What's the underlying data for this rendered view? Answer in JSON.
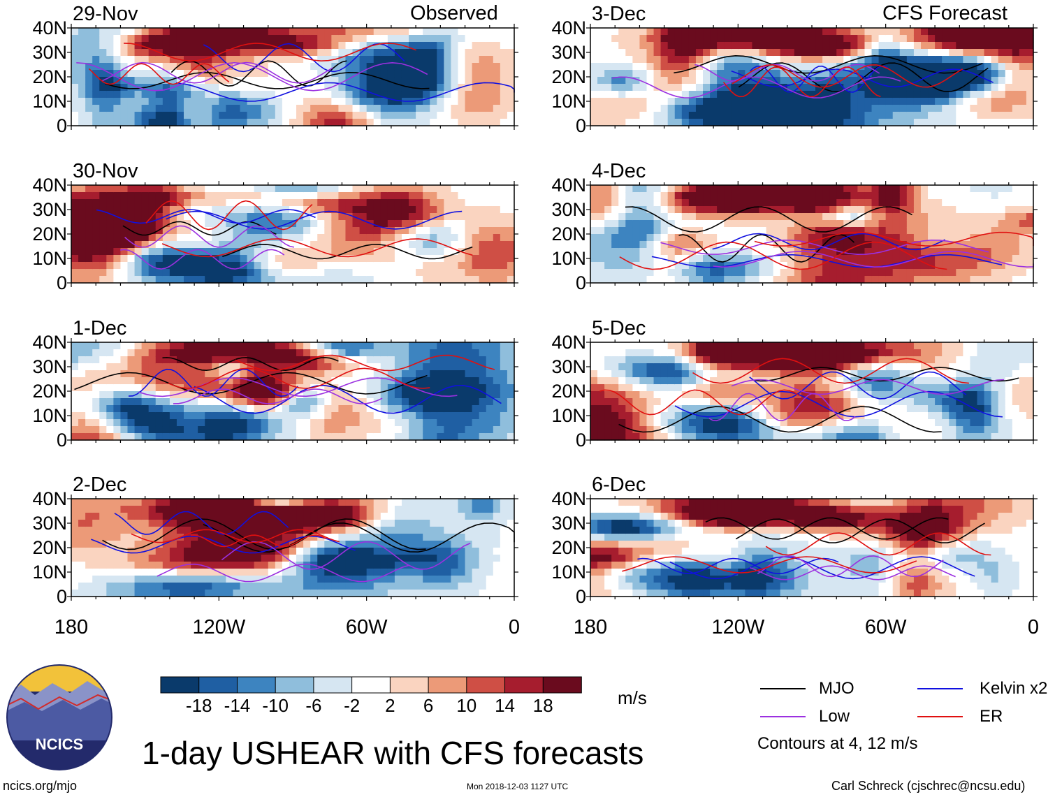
{
  "chart_data": {
    "type": "heatmap",
    "title": "1-day USHEAR with CFS forecasts",
    "units": "m/s",
    "column_headers": [
      "Observed",
      "CFS Forecast"
    ],
    "y_ticks": [
      "40N",
      "30N",
      "20N",
      "10N",
      "0"
    ],
    "y_range": [
      0,
      40
    ],
    "x_ticks": [
      "180",
      "120W",
      "60W",
      "0"
    ],
    "x_range": [
      -180,
      0
    ],
    "panels": [
      {
        "date": "29-Nov",
        "kind": "observed"
      },
      {
        "date": "30-Nov",
        "kind": "observed"
      },
      {
        "date": "1-Dec",
        "kind": "observed"
      },
      {
        "date": "2-Dec",
        "kind": "observed"
      },
      {
        "date": "3-Dec",
        "kind": "forecast"
      },
      {
        "date": "4-Dec",
        "kind": "forecast"
      },
      {
        "date": "5-Dec",
        "kind": "forecast"
      },
      {
        "date": "6-Dec",
        "kind": "forecast"
      }
    ],
    "colorbar": {
      "ticks": [
        "-18",
        "-14",
        "-10",
        "-6",
        "-2",
        "2",
        "6",
        "10",
        "14",
        "18"
      ],
      "colors": [
        "#0a3a6b",
        "#1f5fa3",
        "#3d84c0",
        "#8fbedc",
        "#d6e6f2",
        "#ffffff",
        "#fad4c0",
        "#ec9a78",
        "#cf4f45",
        "#a61d2e",
        "#6a0b1e"
      ]
    },
    "legend": [
      {
        "label": "MJO",
        "color": "#000000"
      },
      {
        "label": "Kelvin x2",
        "color": "#1010e0"
      },
      {
        "label": "Low",
        "color": "#9b30e0"
      },
      {
        "label": "ER",
        "color": "#e01010"
      }
    ],
    "contour_note": "Contours at 4, 12 m/s"
  },
  "branding": {
    "logo_text": "NCICS",
    "site": "ncics.org/mjo",
    "timestamp": "Mon 2018-12-03 1127 UTC",
    "author": "Carl Schreck (cjschrec@ncsu.edu)"
  }
}
